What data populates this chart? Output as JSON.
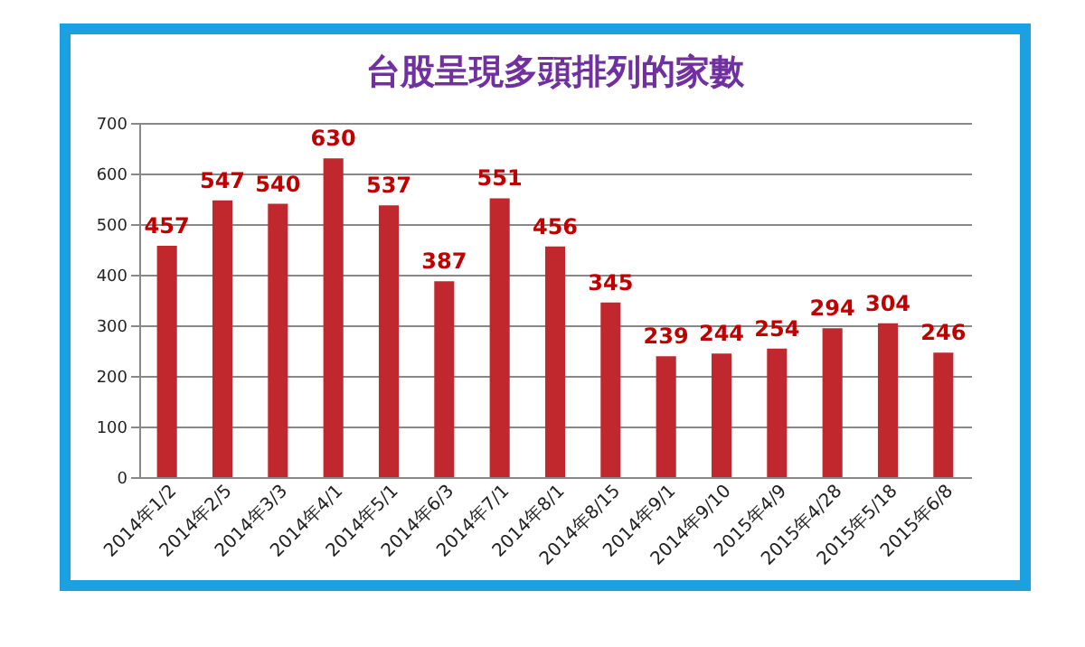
{
  "chart_data": {
    "type": "bar",
    "title": "台股呈現多頭排列的家數",
    "categories": [
      "2014年1/2",
      "2014年2/5",
      "2014年3/3",
      "2014年4/1",
      "2014年5/1",
      "2014年6/3",
      "2014年7/1",
      "2014年8/1",
      "2014年8/15",
      "2014年9/1",
      "2014年9/10",
      "2015年4/9",
      "2015年4/28",
      "2015年5/18",
      "2015年6/8"
    ],
    "values": [
      457,
      547,
      540,
      630,
      537,
      387,
      551,
      456,
      345,
      239,
      244,
      254,
      294,
      304,
      246
    ],
    "color": "#c0282d",
    "ylim": [
      0,
      700
    ],
    "yticks": [
      0,
      100,
      200,
      300,
      400,
      500,
      600,
      700
    ],
    "grid": "y",
    "data_labels": true
  }
}
